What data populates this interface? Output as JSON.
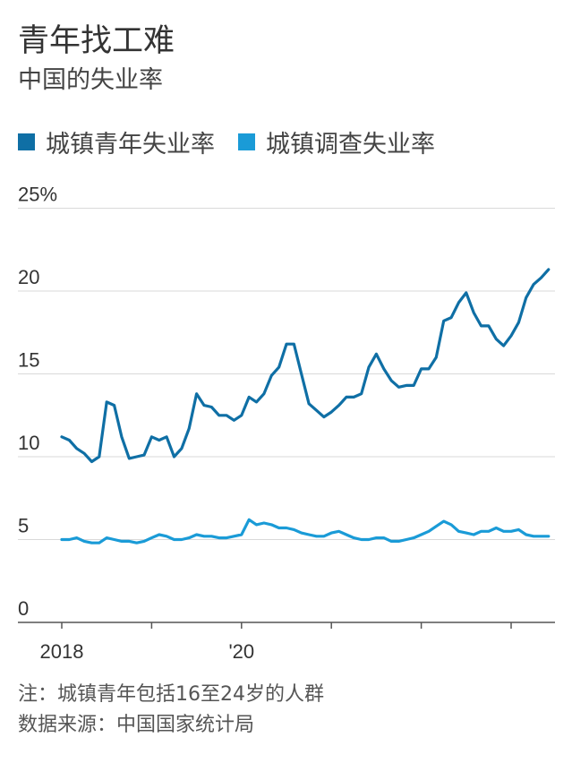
{
  "chart_data": {
    "type": "line",
    "title": "青年找工难",
    "subtitle": "中国的失业率",
    "ylabel": "",
    "xlabel": "",
    "ylim": [
      0,
      25
    ],
    "yticks": [
      0,
      5,
      10,
      15,
      20,
      25
    ],
    "ytick_labels": [
      "0",
      "5",
      "10",
      "15",
      "20",
      "25%"
    ],
    "xlim": [
      2018,
      2023.5
    ],
    "xticks": [
      2018,
      2019,
      2020,
      2021,
      2022,
      2023
    ],
    "xtick_labels": [
      {
        "value": 2018,
        "label": "2018"
      },
      {
        "value": 2020,
        "label": "'20"
      }
    ],
    "legend_position": "top",
    "series": [
      {
        "name": "城镇青年失业率",
        "color": "#0f6fa5",
        "start_year": 2018,
        "values": [
          11.2,
          11.0,
          10.5,
          10.2,
          9.7,
          10.0,
          13.3,
          13.1,
          11.2,
          9.9,
          10.0,
          10.1,
          11.2,
          11.0,
          11.2,
          10.0,
          10.5,
          11.7,
          13.8,
          13.1,
          13.0,
          12.5,
          12.5,
          12.2,
          12.5,
          13.6,
          13.3,
          13.8,
          14.9,
          15.4,
          16.8,
          16.8,
          15.0,
          13.2,
          12.8,
          12.4,
          12.7,
          13.1,
          13.6,
          13.6,
          13.8,
          15.4,
          16.2,
          15.3,
          14.6,
          14.2,
          14.3,
          14.3,
          15.3,
          15.3,
          16.0,
          18.2,
          18.4,
          19.3,
          19.9,
          18.7,
          17.9,
          17.9,
          17.1,
          16.7,
          17.3,
          18.1,
          19.6,
          20.4,
          20.8,
          21.3
        ]
      },
      {
        "name": "城镇调查失业率",
        "color": "#1a9bd7",
        "start_year": 2018,
        "values": [
          5.0,
          5.0,
          5.1,
          4.9,
          4.8,
          4.8,
          5.1,
          5.0,
          4.9,
          4.9,
          4.8,
          4.9,
          5.1,
          5.3,
          5.2,
          5.0,
          5.0,
          5.1,
          5.3,
          5.2,
          5.2,
          5.1,
          5.1,
          5.2,
          5.3,
          6.2,
          5.9,
          6.0,
          5.9,
          5.7,
          5.7,
          5.6,
          5.4,
          5.3,
          5.2,
          5.2,
          5.4,
          5.5,
          5.3,
          5.1,
          5.0,
          5.0,
          5.1,
          5.1,
          4.9,
          4.9,
          5.0,
          5.1,
          5.3,
          5.5,
          5.8,
          6.1,
          5.9,
          5.5,
          5.4,
          5.3,
          5.5,
          5.5,
          5.7,
          5.5,
          5.5,
          5.6,
          5.3,
          5.2,
          5.2,
          5.2
        ]
      }
    ]
  },
  "notes": {
    "footnote": "注：城镇青年包括16至24岁的人群",
    "source": "数据来源：中国国家统计局"
  }
}
